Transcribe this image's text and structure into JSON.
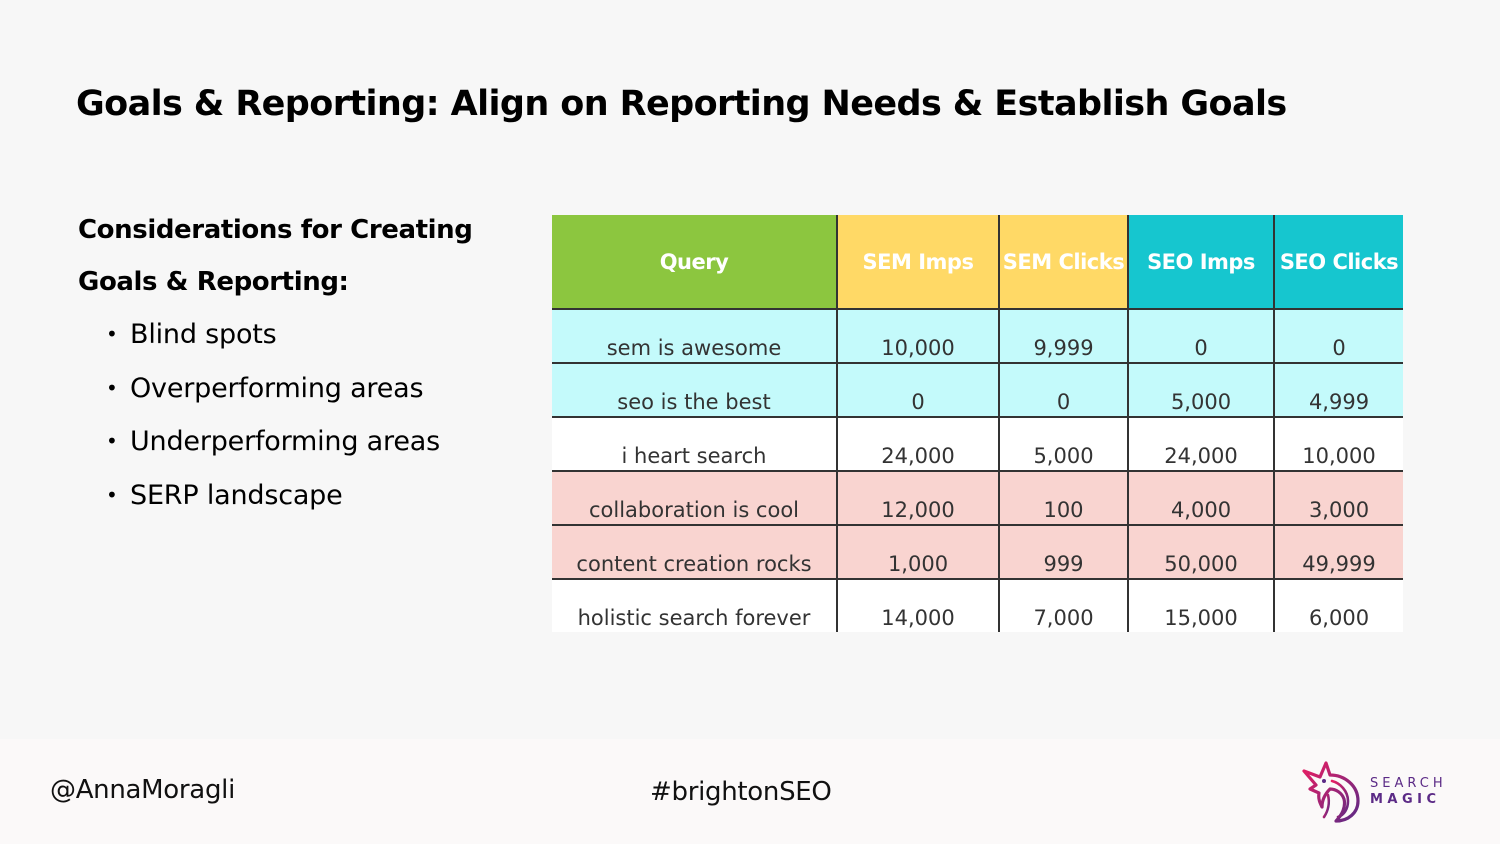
{
  "slide": {
    "title": "Goals & Reporting: Align on Reporting Needs & Establish Goals"
  },
  "considerations": {
    "heading_line1": "Considerations for Creating",
    "heading_line2": "Goals & Reporting:",
    "bullet_glyph": "•",
    "items": [
      "Blind spots",
      "Overperforming areas",
      "Underperforming areas",
      "SERP landscape"
    ]
  },
  "table": {
    "header_colors": [
      "#8cc63f",
      "#ffd966",
      "#ffd966",
      "#16c6cf",
      "#16c6cf"
    ],
    "headers": [
      "Query",
      "SEM Imps",
      "SEM Clicks",
      "SEO Imps",
      "SEO Clicks"
    ],
    "row_colors": [
      "#c4fafb",
      "#c4fafb",
      "#ffffff",
      "#f9d4d0",
      "#f9d4d0",
      "#ffffff"
    ],
    "rows": [
      [
        "sem is awesome",
        "10,000",
        "9,999",
        "0",
        "0"
      ],
      [
        "seo is the best",
        "0",
        "0",
        "5,000",
        "4,999"
      ],
      [
        "i heart search",
        "24,000",
        "5,000",
        "24,000",
        "10,000"
      ],
      [
        "collaboration is cool",
        "12,000",
        "100",
        "4,000",
        "3,000"
      ],
      [
        "content creation rocks",
        "1,000",
        "999",
        "50,000",
        "49,999"
      ],
      [
        "holistic search forever",
        "14,000",
        "7,000",
        "15,000",
        "6,000"
      ]
    ]
  },
  "footer": {
    "handle": "@AnnaMoragli",
    "hashtag": "#brightonSEO",
    "logo": {
      "icon": "unicorn-logo-icon",
      "line1": "SEARCH",
      "line2": "MAGIC",
      "brand_colors": [
        "#c2185b",
        "#5b2a86"
      ]
    }
  }
}
